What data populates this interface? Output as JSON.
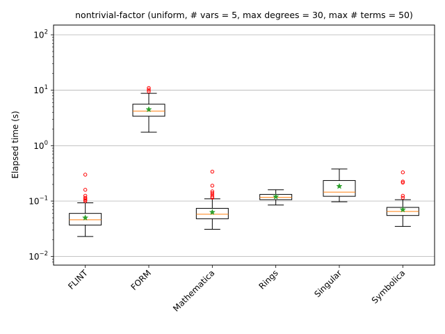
{
  "chart_data": {
    "type": "box",
    "title": "nontrivial-factor (uniform, # vars = 5, max degrees = 30, max # terms = 50)",
    "xlabel": "",
    "ylabel": "Elapsed time (s)",
    "yscale": "log",
    "ylim": [
      0.007,
      150
    ],
    "yticks": [
      {
        "value": 0.01,
        "base": "10",
        "exp": "−2"
      },
      {
        "value": 0.1,
        "base": "10",
        "exp": "−1"
      },
      {
        "value": 1,
        "base": "10",
        "exp": "0"
      },
      {
        "value": 10,
        "base": "10",
        "exp": "1"
      },
      {
        "value": 100,
        "base": "10",
        "exp": "2"
      }
    ],
    "grid": "y",
    "categories": [
      "FLINT",
      "FORM",
      "Mathematica",
      "Rings",
      "Singular",
      "Symbolica"
    ],
    "boxes": [
      {
        "whisker_low": 0.023,
        "q1": 0.037,
        "median": 0.046,
        "q3": 0.06,
        "whisker_high": 0.093,
        "mean": 0.05,
        "outliers": [
          0.1,
          0.105,
          0.11,
          0.115,
          0.125,
          0.16,
          0.3
        ]
      },
      {
        "whisker_low": 1.75,
        "q1": 3.4,
        "median": 4.2,
        "q3": 5.6,
        "whisker_high": 8.8,
        "mean": 4.5,
        "outliers": [
          9.5,
          10.2,
          11.0
        ]
      },
      {
        "whisker_low": 0.031,
        "q1": 0.048,
        "median": 0.058,
        "q3": 0.074,
        "whisker_high": 0.11,
        "mean": 0.063,
        "outliers": [
          0.115,
          0.12,
          0.13,
          0.14,
          0.15,
          0.19,
          0.34
        ]
      },
      {
        "whisker_low": 0.085,
        "q1": 0.106,
        "median": 0.117,
        "q3": 0.132,
        "whisker_high": 0.16,
        "mean": 0.12,
        "outliers": []
      },
      {
        "whisker_low": 0.097,
        "q1": 0.122,
        "median": 0.145,
        "q3": 0.235,
        "whisker_high": 0.38,
        "mean": 0.185,
        "outliers": []
      },
      {
        "whisker_low": 0.035,
        "q1": 0.055,
        "median": 0.065,
        "q3": 0.077,
        "whisker_high": 0.106,
        "mean": 0.07,
        "outliers": [
          0.115,
          0.125,
          0.215,
          0.225,
          0.33
        ]
      }
    ],
    "colors": {
      "box": "#000000",
      "median": "#ff7f0e",
      "mean": "#2ca02c",
      "outlier": "#ff0000",
      "grid": "#b0b0b0"
    }
  }
}
